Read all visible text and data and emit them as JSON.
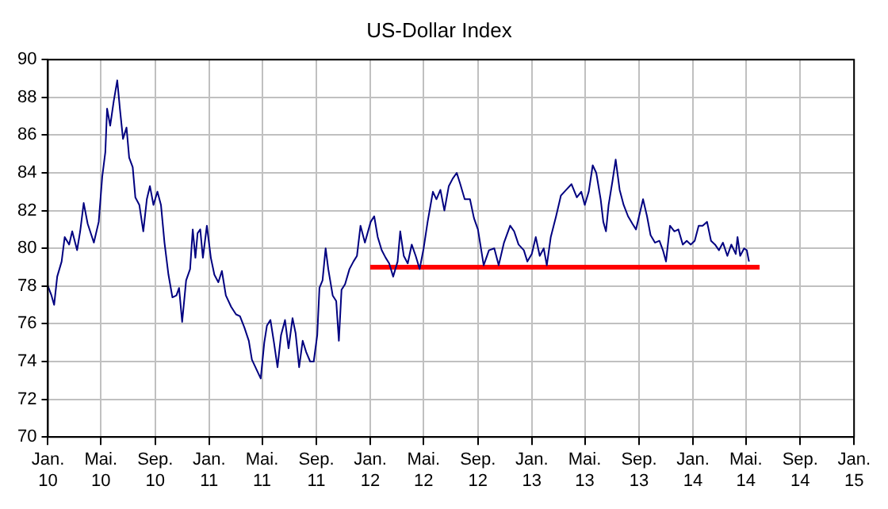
{
  "chart_data": {
    "type": "line",
    "title": "US-Dollar Index",
    "xlim": [
      "2010-01",
      "2015-01"
    ],
    "xticks": [
      {
        "value": "2010-01",
        "label": "Jan.\n10"
      },
      {
        "value": "2010-05",
        "label": "Mai.\n10"
      },
      {
        "value": "2010-09",
        "label": "Sep.\n10"
      },
      {
        "value": "2011-01",
        "label": "Jan.\n11"
      },
      {
        "value": "2011-05",
        "label": "Mai.\n11"
      },
      {
        "value": "2011-09",
        "label": "Sep.\n11"
      },
      {
        "value": "2012-01",
        "label": "Jan.\n12"
      },
      {
        "value": "2012-05",
        "label": "Mai.\n12"
      },
      {
        "value": "2012-09",
        "label": "Sep.\n12"
      },
      {
        "value": "2013-01",
        "label": "Jan.\n13"
      },
      {
        "value": "2013-05",
        "label": "Mai.\n13"
      },
      {
        "value": "2013-09",
        "label": "Sep.\n13"
      },
      {
        "value": "2014-01",
        "label": "Jan.\n14"
      },
      {
        "value": "2014-05",
        "label": "Mai.\n14"
      },
      {
        "value": "2014-09",
        "label": "Sep.\n14"
      },
      {
        "value": "2015-01",
        "label": "Jan.\n15"
      }
    ],
    "ylim": [
      70,
      90
    ],
    "yticks": [
      70,
      72,
      74,
      76,
      78,
      80,
      82,
      84,
      86,
      88,
      90
    ],
    "grid": true,
    "legend": false,
    "marker": "none",
    "line_style": "solid",
    "series": [
      {
        "color": "#000080",
        "x": [
          "2010-01-01",
          "2010-01-09",
          "2010-01-15",
          "2010-01-22",
          "2010-02-01",
          "2010-02-08",
          "2010-02-18",
          "2010-02-25",
          "2010-03-08",
          "2010-03-15",
          "2010-03-23",
          "2010-04-01",
          "2010-04-15",
          "2010-04-26",
          "2010-05-04",
          "2010-05-11",
          "2010-05-15",
          "2010-05-22",
          "2010-05-30",
          "2010-06-07",
          "2010-06-13",
          "2010-06-20",
          "2010-06-28",
          "2010-07-04",
          "2010-07-12",
          "2010-07-18",
          "2010-07-27",
          "2010-08-05",
          "2010-08-13",
          "2010-08-20",
          "2010-08-28",
          "2010-09-06",
          "2010-09-14",
          "2010-09-22",
          "2010-10-01",
          "2010-10-10",
          "2010-10-19",
          "2010-10-25",
          "2010-11-01",
          "2010-11-10",
          "2010-11-19",
          "2010-11-25",
          "2010-12-01",
          "2010-12-06",
          "2010-12-12",
          "2010-12-18",
          "2010-12-27",
          "2011-01-05",
          "2011-01-13",
          "2011-01-22",
          "2011-01-30",
          "2011-02-08",
          "2011-02-20",
          "2011-03-03",
          "2011-03-12",
          "2011-03-22",
          "2011-04-01",
          "2011-04-08",
          "2011-04-28",
          "2011-05-06",
          "2011-05-12",
          "2011-05-20",
          "2011-05-28",
          "2011-06-05",
          "2011-06-13",
          "2011-06-22",
          "2011-06-30",
          "2011-07-09",
          "2011-07-16",
          "2011-07-24",
          "2011-08-01",
          "2011-08-09",
          "2011-08-18",
          "2011-08-26",
          "2011-09-03",
          "2011-09-08",
          "2011-09-15",
          "2011-09-22",
          "2011-09-28",
          "2011-10-08",
          "2011-10-16",
          "2011-10-22",
          "2011-10-28",
          "2011-11-05",
          "2011-11-15",
          "2011-11-24",
          "2011-12-02",
          "2011-12-10",
          "2011-12-20",
          "2012-01-02",
          "2012-01-10",
          "2012-01-18",
          "2012-01-27",
          "2012-02-05",
          "2012-02-13",
          "2012-02-22",
          "2012-03-03",
          "2012-03-09",
          "2012-03-17",
          "2012-03-26",
          "2012-04-04",
          "2012-04-13",
          "2012-04-22",
          "2012-05-01",
          "2012-05-10",
          "2012-05-22",
          "2012-05-30",
          "2012-06-08",
          "2012-06-17",
          "2012-06-27",
          "2012-07-06",
          "2012-07-15",
          "2012-07-23",
          "2012-08-02",
          "2012-08-14",
          "2012-08-23",
          "2012-09-01",
          "2012-09-14",
          "2012-09-26",
          "2012-10-08",
          "2012-10-18",
          "2012-10-30",
          "2012-11-13",
          "2012-11-22",
          "2012-12-02",
          "2012-12-14",
          "2012-12-22",
          "2013-01-01",
          "2013-01-10",
          "2013-01-19",
          "2013-01-28",
          "2013-02-04",
          "2013-02-13",
          "2013-02-25",
          "2013-03-08",
          "2013-03-20",
          "2013-04-01",
          "2013-04-13",
          "2013-04-23",
          "2013-05-01",
          "2013-05-10",
          "2013-05-19",
          "2013-05-27",
          "2013-06-06",
          "2013-06-12",
          "2013-06-18",
          "2013-06-24",
          "2013-07-03",
          "2013-07-10",
          "2013-07-19",
          "2013-07-28",
          "2013-08-07",
          "2013-08-17",
          "2013-08-25",
          "2013-09-03",
          "2013-09-10",
          "2013-09-19",
          "2013-09-27",
          "2013-10-07",
          "2013-10-17",
          "2013-10-25",
          "2013-11-01",
          "2013-11-10",
          "2013-11-20",
          "2013-11-29",
          "2013-12-09",
          "2013-12-18",
          "2013-12-27",
          "2014-01-05",
          "2014-01-14",
          "2014-01-23",
          "2014-02-02",
          "2014-02-11",
          "2014-02-20",
          "2014-03-01",
          "2014-03-10",
          "2014-03-20",
          "2014-03-29",
          "2014-04-08",
          "2014-04-12",
          "2014-04-18",
          "2014-04-27",
          "2014-05-03",
          "2014-05-08"
        ],
        "values": [
          78.0,
          77.5,
          77.0,
          78.5,
          79.3,
          80.6,
          80.2,
          80.9,
          79.9,
          80.9,
          82.4,
          81.3,
          80.3,
          81.4,
          83.8,
          85.1,
          87.4,
          86.5,
          87.8,
          88.9,
          87.4,
          85.8,
          86.4,
          84.8,
          84.3,
          82.7,
          82.3,
          80.9,
          82.6,
          83.3,
          82.3,
          83.0,
          82.3,
          80.3,
          78.6,
          77.4,
          77.5,
          77.9,
          76.1,
          78.3,
          78.9,
          81.0,
          79.5,
          80.8,
          81.0,
          79.5,
          81.2,
          79.5,
          78.6,
          78.2,
          78.8,
          77.5,
          76.9,
          76.5,
          76.4,
          75.8,
          75.1,
          74.1,
          73.1,
          75.0,
          75.9,
          76.2,
          75.0,
          73.7,
          75.4,
          76.2,
          74.7,
          76.3,
          75.5,
          73.7,
          75.1,
          74.5,
          74.0,
          74.0,
          75.4,
          77.9,
          78.3,
          80.0,
          78.9,
          77.5,
          77.2,
          75.1,
          77.8,
          78.1,
          78.9,
          79.3,
          79.6,
          81.2,
          80.3,
          81.4,
          81.7,
          80.6,
          79.9,
          79.5,
          79.2,
          78.5,
          79.3,
          80.9,
          79.6,
          79.2,
          80.2,
          79.6,
          78.9,
          80.0,
          81.4,
          83.0,
          82.6,
          83.1,
          82.0,
          83.3,
          83.7,
          84.0,
          83.4,
          82.6,
          82.6,
          81.6,
          81.0,
          79.1,
          79.9,
          80.0,
          79.1,
          80.3,
          81.2,
          80.9,
          80.2,
          79.9,
          79.3,
          79.7,
          80.6,
          79.6,
          80.0,
          79.1,
          80.6,
          81.7,
          82.8,
          83.1,
          83.4,
          82.7,
          83.0,
          82.3,
          83.0,
          84.4,
          84.0,
          82.6,
          81.4,
          80.9,
          82.3,
          83.6,
          84.7,
          83.1,
          82.3,
          81.7,
          81.3,
          81.0,
          81.9,
          82.6,
          81.7,
          80.7,
          80.3,
          80.4,
          79.9,
          79.3,
          81.2,
          80.9,
          81.0,
          80.2,
          80.4,
          80.2,
          80.4,
          81.2,
          81.2,
          81.4,
          80.4,
          80.2,
          79.9,
          80.3,
          79.6,
          80.2,
          79.7,
          80.6,
          79.6,
          80.0,
          79.9,
          79.3
        ]
      },
      {
        "color": "#ff0000",
        "x": [
          "2012-01",
          "2014-06"
        ],
        "values": [
          79,
          79
        ]
      }
    ]
  }
}
